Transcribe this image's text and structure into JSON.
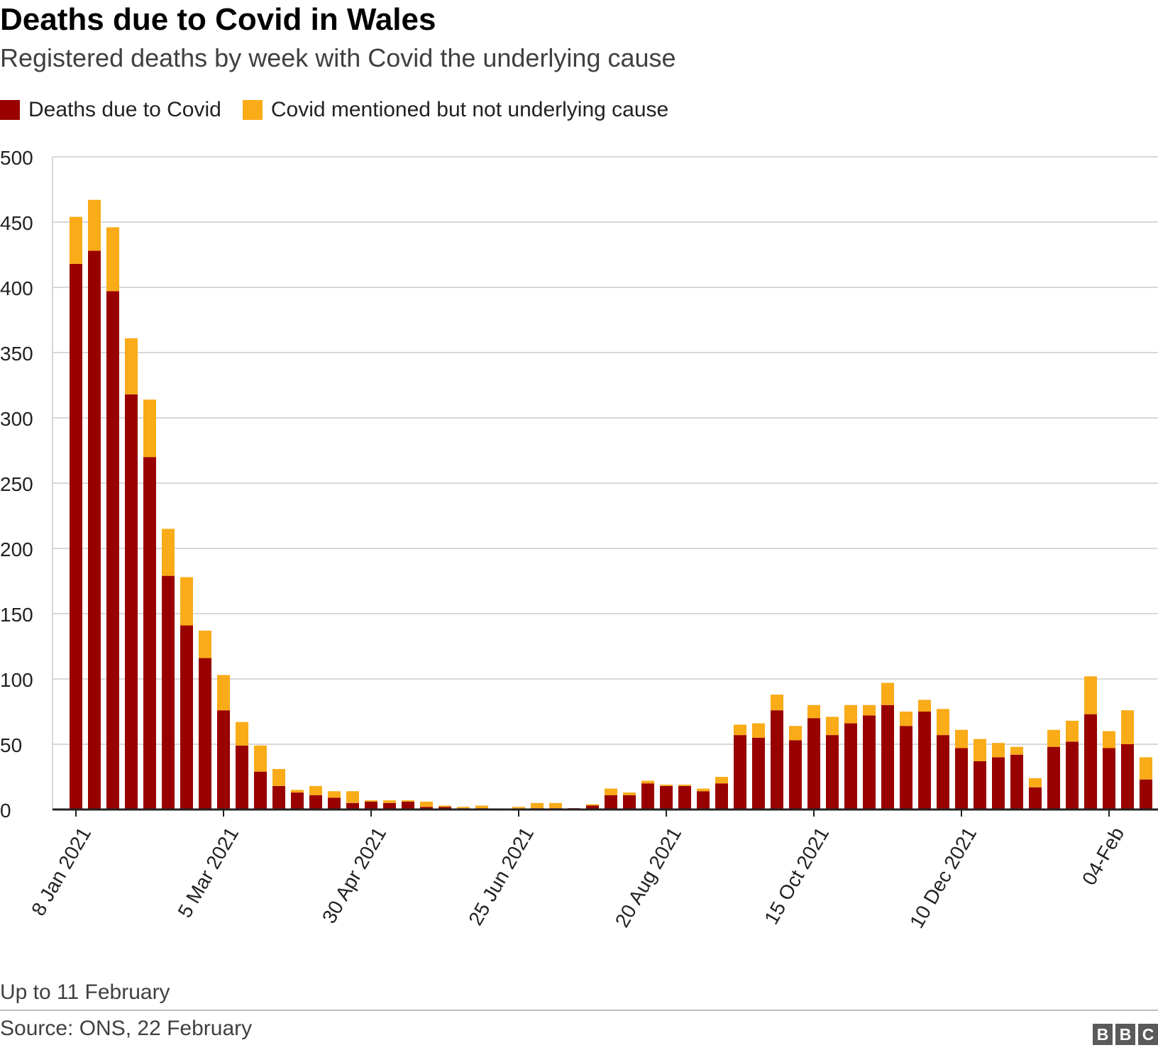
{
  "title": "Deaths due to Covid in Wales",
  "subtitle": "Registered deaths by week with Covid the underlying cause",
  "legend": {
    "primary": {
      "label": "Deaths due to Covid",
      "color": "#990000"
    },
    "secondary": {
      "label": "Covid mentioned but not underlying cause",
      "color": "#FAAB18"
    }
  },
  "note": "Up to 11 February",
  "source": "Source: ONS, 22 February",
  "logo": [
    "B",
    "B",
    "C"
  ],
  "chart_data": {
    "type": "bar",
    "stacked": true,
    "title": "Deaths due to Covid in Wales",
    "xlabel": "",
    "ylabel": "",
    "ylim": [
      0,
      500
    ],
    "yticks": [
      0,
      50,
      100,
      150,
      200,
      250,
      300,
      350,
      400,
      450,
      500
    ],
    "grid": true,
    "x_tick_labels": [
      {
        "index": 0,
        "label": "8 Jan 2021"
      },
      {
        "index": 8,
        "label": "5 Mar 2021"
      },
      {
        "index": 16,
        "label": "30 Apr 2021"
      },
      {
        "index": 24,
        "label": "25 Jun 2021"
      },
      {
        "index": 32,
        "label": "20 Aug 2021"
      },
      {
        "index": 40,
        "label": "15 Oct 2021"
      },
      {
        "index": 48,
        "label": "10 Dec 2021"
      },
      {
        "index": 56,
        "label": "04-Feb"
      }
    ],
    "series": [
      {
        "name": "Deaths due to Covid",
        "color": "#990000",
        "values": [
          418,
          428,
          397,
          318,
          270,
          179,
          141,
          116,
          76,
          49,
          29,
          18,
          13,
          11,
          9,
          5,
          6,
          5,
          6,
          2,
          2,
          1,
          1,
          0,
          0,
          1,
          1,
          1,
          3,
          11,
          11,
          20,
          18,
          18,
          14,
          20,
          57,
          55,
          76,
          53,
          70,
          57,
          66,
          72,
          80,
          64,
          75,
          57,
          47,
          37,
          40,
          42,
          17,
          48,
          52,
          73,
          47,
          50,
          23
        ]
      },
      {
        "name": "Covid mentioned but not underlying cause",
        "color": "#FAAB18",
        "values": [
          36,
          39,
          49,
          43,
          44,
          36,
          37,
          21,
          27,
          18,
          20,
          13,
          2,
          7,
          5,
          9,
          1,
          2,
          1,
          4,
          1,
          1,
          2,
          0,
          2,
          4,
          4,
          0,
          1,
          5,
          2,
          2,
          1,
          1,
          2,
          5,
          8,
          11,
          12,
          11,
          10,
          14,
          14,
          8,
          17,
          11,
          9,
          20,
          14,
          17,
          11,
          6,
          7,
          13,
          16,
          29,
          13,
          26,
          17
        ]
      }
    ]
  }
}
